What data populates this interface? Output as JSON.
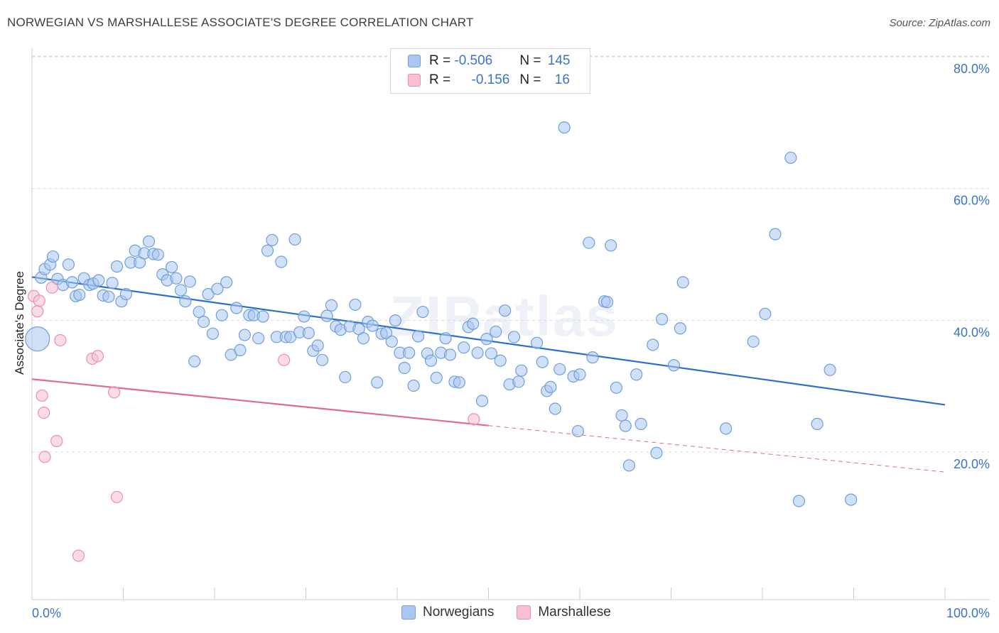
{
  "title": "NORWEGIAN VS MARSHALLESE ASSOCIATE'S DEGREE CORRELATION CHART",
  "source": "Source: ZipAtlas.com",
  "watermark": "ZIPatlas",
  "legend": {
    "rows": [
      {
        "r_label": "R = ",
        "r_value": "-0.506",
        "n_label": "N = ",
        "n_value": "145"
      },
      {
        "r_label": "R = ",
        "r_value": "-0.156",
        "n_label": "N = ",
        "n_value": "16"
      }
    ]
  },
  "bottom_legend": [
    "Norwegians",
    "Marshallese"
  ],
  "colors": {
    "norwegian_fill": "#a9c7f0",
    "norwegian_stroke": "#6f9fdc",
    "norwegian_line": "#2d6fcc",
    "marshallese_fill": "#f7bfd0",
    "marshallese_stroke": "#ea8fad",
    "marshallese_line": "#e06a93",
    "grid": "#d9d9d9",
    "tick_label": "#3a73c9"
  },
  "chart_data": {
    "type": "scatter",
    "title": "NORWEGIAN VS MARSHALLESE ASSOCIATE'S DEGREE CORRELATION CHART",
    "xlabel": "",
    "ylabel": "Associate's Degree",
    "xlim": [
      0,
      100
    ],
    "ylim": [
      0,
      80
    ],
    "x_tick_labels": [
      "0.0%",
      "100.0%"
    ],
    "y_ticks": [
      20,
      40,
      60,
      80
    ],
    "y_tick_labels": [
      "20.0%",
      "40.0%",
      "60.0%",
      "80.0%"
    ],
    "grid": true,
    "legend_position": "top-center",
    "series": [
      {
        "name": "Norwegians",
        "r": -0.506,
        "n": 145,
        "trend": {
          "x": [
            0,
            100
          ],
          "y": [
            48.4,
            29.0
          ],
          "dashed_from": null
        },
        "points": [
          [
            0.6,
            39.0,
            "big"
          ],
          [
            1.0,
            48.3
          ],
          [
            1.4,
            49.6
          ],
          [
            2.0,
            50.3
          ],
          [
            2.3,
            51.5
          ],
          [
            2.8,
            48.1
          ],
          [
            3.4,
            47.2
          ],
          [
            4.0,
            50.3
          ],
          [
            4.4,
            47.6
          ],
          [
            4.8,
            45.5
          ],
          [
            5.2,
            45.7
          ],
          [
            5.7,
            48.2
          ],
          [
            6.3,
            47.2
          ],
          [
            6.7,
            47.4
          ],
          [
            7.3,
            47.9
          ],
          [
            7.8,
            45.6
          ],
          [
            8.4,
            45.4
          ],
          [
            8.8,
            47.5
          ],
          [
            9.3,
            50.0
          ],
          [
            9.8,
            44.7
          ],
          [
            10.3,
            45.8
          ],
          [
            10.8,
            50.6
          ],
          [
            11.3,
            52.4
          ],
          [
            11.8,
            50.6
          ],
          [
            12.3,
            52.0
          ],
          [
            12.8,
            53.8
          ],
          [
            13.3,
            51.9
          ],
          [
            13.8,
            51.8
          ],
          [
            14.3,
            48.8
          ],
          [
            14.8,
            47.9
          ],
          [
            15.3,
            49.9
          ],
          [
            15.8,
            48.2
          ],
          [
            16.3,
            46.4
          ],
          [
            16.8,
            44.7
          ],
          [
            17.3,
            47.7
          ],
          [
            17.8,
            35.6
          ],
          [
            18.3,
            43.1
          ],
          [
            18.8,
            41.6
          ],
          [
            19.3,
            45.8
          ],
          [
            19.8,
            39.8
          ],
          [
            20.3,
            46.6
          ],
          [
            20.8,
            42.6
          ],
          [
            21.3,
            47.6
          ],
          [
            21.8,
            36.6
          ],
          [
            22.4,
            43.7
          ],
          [
            22.8,
            37.3
          ],
          [
            23.3,
            39.6
          ],
          [
            23.8,
            42.6
          ],
          [
            24.3,
            42.6
          ],
          [
            24.8,
            39.1
          ],
          [
            25.3,
            42.4
          ],
          [
            25.8,
            52.4
          ],
          [
            26.3,
            54.0
          ],
          [
            26.8,
            39.3
          ],
          [
            27.3,
            50.7
          ],
          [
            27.8,
            39.3
          ],
          [
            28.3,
            39.3
          ],
          [
            28.8,
            54.1
          ],
          [
            29.3,
            40.0
          ],
          [
            29.8,
            42.4
          ],
          [
            30.3,
            39.9
          ],
          [
            30.8,
            37.2
          ],
          [
            31.3,
            38.0
          ],
          [
            31.8,
            35.8
          ],
          [
            32.3,
            42.5
          ],
          [
            32.8,
            44.1
          ],
          [
            33.3,
            40.9
          ],
          [
            33.8,
            40.4
          ],
          [
            34.3,
            33.2
          ],
          [
            34.8,
            40.9
          ],
          [
            35.4,
            44.2
          ],
          [
            35.8,
            40.5
          ],
          [
            36.3,
            39.1
          ],
          [
            36.8,
            41.6
          ],
          [
            37.3,
            41.0
          ],
          [
            37.8,
            32.4
          ],
          [
            38.3,
            39.8
          ],
          [
            38.8,
            39.9
          ],
          [
            39.4,
            38.6
          ],
          [
            39.8,
            41.8
          ],
          [
            40.3,
            36.9
          ],
          [
            40.8,
            34.6
          ],
          [
            41.3,
            36.9
          ],
          [
            41.8,
            31.9
          ],
          [
            42.3,
            39.4
          ],
          [
            42.8,
            43.1
          ],
          [
            43.3,
            36.8
          ],
          [
            43.7,
            35.7
          ],
          [
            44.3,
            33.1
          ],
          [
            44.8,
            36.9
          ],
          [
            45.3,
            39.1
          ],
          [
            45.8,
            36.6
          ],
          [
            46.3,
            32.5
          ],
          [
            46.8,
            32.4
          ],
          [
            47.3,
            37.7
          ],
          [
            47.8,
            40.8
          ],
          [
            48.3,
            41.3
          ],
          [
            48.8,
            36.9
          ],
          [
            49.3,
            29.6
          ],
          [
            49.8,
            39.0
          ],
          [
            50.3,
            36.8
          ],
          [
            50.8,
            40.1
          ],
          [
            51.3,
            35.7
          ],
          [
            51.8,
            43.3
          ],
          [
            52.3,
            32.1
          ],
          [
            52.8,
            39.3
          ],
          [
            53.3,
            32.5
          ],
          [
            53.6,
            34.2
          ],
          [
            55.3,
            38.4
          ],
          [
            55.9,
            35.5
          ],
          [
            56.4,
            31.1
          ],
          [
            56.8,
            31.7
          ],
          [
            57.3,
            28.4
          ],
          [
            57.8,
            34.4
          ],
          [
            58.3,
            71.1
          ],
          [
            59.3,
            33.3
          ],
          [
            60.0,
            33.6
          ],
          [
            59.8,
            25.0
          ],
          [
            61.0,
            53.6
          ],
          [
            61.4,
            36.2
          ],
          [
            63.4,
            53.2
          ],
          [
            62.7,
            44.7
          ],
          [
            63.0,
            44.6
          ],
          [
            64.0,
            31.6
          ],
          [
            64.6,
            27.4
          ],
          [
            65.0,
            25.8
          ],
          [
            65.4,
            19.8
          ],
          [
            66.2,
            33.6
          ],
          [
            66.7,
            26.1
          ],
          [
            68.0,
            38.1
          ],
          [
            68.4,
            21.7
          ],
          [
            69.0,
            42.0
          ],
          [
            70.3,
            35.0
          ],
          [
            71.0,
            40.6
          ],
          [
            71.3,
            47.6
          ],
          [
            76.0,
            25.4
          ],
          [
            79.0,
            38.6
          ],
          [
            80.3,
            42.8
          ],
          [
            81.4,
            54.9
          ],
          [
            83.1,
            66.5
          ],
          [
            84.0,
            14.4
          ],
          [
            86.0,
            26.1
          ],
          [
            87.4,
            34.3
          ],
          [
            89.7,
            14.6
          ]
        ]
      },
      {
        "name": "Marshallese",
        "r": -0.156,
        "n": 16,
        "trend": {
          "x": [
            0,
            100
          ],
          "y": [
            32.9,
            18.8
          ],
          "solid_until_x": 50
        },
        "points": [
          [
            0.2,
            45.5
          ],
          [
            0.6,
            43.2
          ],
          [
            0.8,
            44.8
          ],
          [
            1.1,
            30.4
          ],
          [
            1.3,
            27.8
          ],
          [
            1.4,
            21.1
          ],
          [
            2.2,
            46.8
          ],
          [
            2.7,
            23.5
          ],
          [
            3.1,
            38.8
          ],
          [
            6.6,
            36.0
          ],
          [
            7.2,
            36.4
          ],
          [
            9.0,
            30.9
          ],
          [
            9.3,
            15.0
          ],
          [
            5.1,
            6.1
          ],
          [
            27.6,
            35.8
          ],
          [
            48.4,
            26.8
          ]
        ]
      }
    ]
  }
}
